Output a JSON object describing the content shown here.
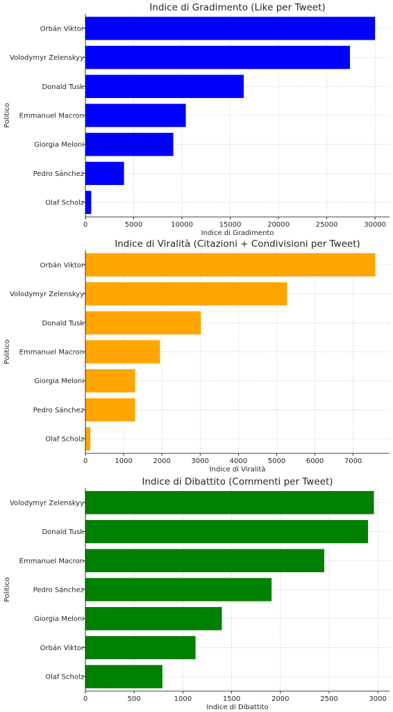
{
  "chart_data": [
    {
      "type": "bar",
      "orientation": "horizontal",
      "title": "Indice di Gradimento (Like per Tweet)",
      "xlabel": "Indice di Gradimento",
      "ylabel": "Politico",
      "color": "#0000ff",
      "grid": true,
      "xlim": [
        0,
        31500
      ],
      "xticks": [
        0,
        5000,
        10000,
        15000,
        20000,
        25000,
        30000
      ],
      "categories": [
        "Orbán Viktor",
        "Volodymyr Zelenskyy",
        "Donald Tusk",
        "Emmanuel Macron",
        "Giorgia Meloni",
        "Pedro Sánchez",
        "Olaf Scholz"
      ],
      "values": [
        30000,
        27400,
        16400,
        10400,
        9100,
        4000,
        600
      ]
    },
    {
      "type": "bar",
      "orientation": "horizontal",
      "title": "Indice di Viralità (Citazioni + Condivisioni per Tweet)",
      "xlabel": "Indice di Viralità",
      "ylabel": "Politico",
      "color": "#ffa500",
      "grid": true,
      "xlim": [
        0,
        7950
      ],
      "xticks": [
        0,
        1000,
        2000,
        3000,
        4000,
        5000,
        6000,
        7000
      ],
      "categories": [
        "Orbán Viktor",
        "Volodymyr Zelenskyy",
        "Donald Tusk",
        "Emmanuel Macron",
        "Giorgia Meloni",
        "Pedro Sánchez",
        "Olaf Scholz"
      ],
      "values": [
        7580,
        5270,
        3020,
        1950,
        1300,
        1300,
        130
      ]
    },
    {
      "type": "bar",
      "orientation": "horizontal",
      "title": "Indice di Dibattito (Commenti per Tweet)",
      "xlabel": "Indice di Dibattito",
      "ylabel": "Politico",
      "color": "#008000",
      "grid": true,
      "xlim": [
        0,
        3120
      ],
      "xticks": [
        0,
        500,
        1000,
        1500,
        2000,
        2500,
        3000
      ],
      "categories": [
        "Volodymyr Zelenskyy",
        "Donald Tusk",
        "Emmanuel Macron",
        "Pedro Sánchez",
        "Giorgia Meloni",
        "Orbán Viktor",
        "Olaf Scholz"
      ],
      "values": [
        2960,
        2900,
        2450,
        1910,
        1400,
        1130,
        790
      ]
    }
  ]
}
